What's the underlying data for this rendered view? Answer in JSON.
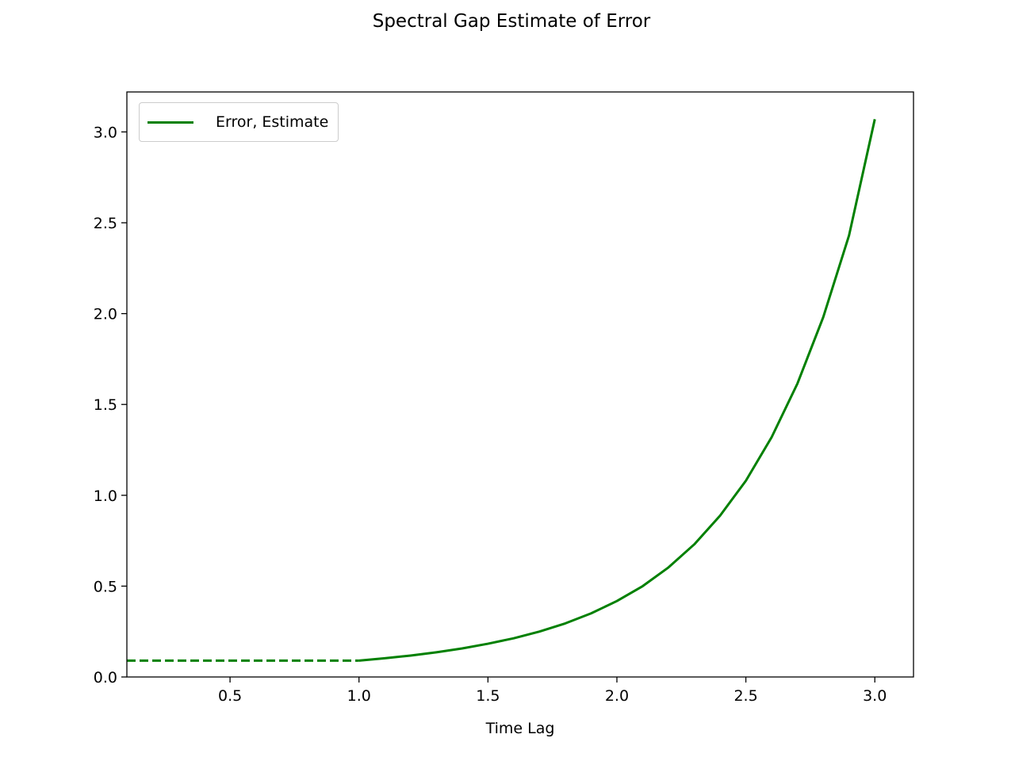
{
  "chart_data": {
    "type": "line",
    "title": "Spectral Gap Estimate of Error",
    "xlabel": "Time Lag",
    "ylabel": "",
    "xlim": [
      0.1,
      3.15
    ],
    "ylim": [
      0.0,
      3.22
    ],
    "xticks": [
      "0.5",
      "1.0",
      "1.5",
      "2.0",
      "2.5",
      "3.0"
    ],
    "yticks": [
      "0.0",
      "0.5",
      "1.0",
      "1.5",
      "2.0",
      "2.5",
      "3.0"
    ],
    "grid": false,
    "legend_position": "top-left",
    "series": [
      {
        "name": "Error, Estimate",
        "color": "#008000",
        "style": "solid",
        "x": [
          1.0,
          1.1,
          1.2,
          1.3,
          1.4,
          1.5,
          1.6,
          1.7,
          1.8,
          1.9,
          2.0,
          2.1,
          2.2,
          2.3,
          2.4,
          2.5,
          2.6,
          2.7,
          2.8,
          2.9,
          3.0
        ],
        "y": [
          0.09,
          0.103,
          0.118,
          0.136,
          0.157,
          0.183,
          0.213,
          0.25,
          0.295,
          0.35,
          0.418,
          0.5,
          0.603,
          0.73,
          0.888,
          1.08,
          1.32,
          1.615,
          1.98,
          2.43,
          3.07
        ]
      },
      {
        "name": "",
        "color": "#008000",
        "style": "dashed",
        "x": [
          0.1,
          1.0
        ],
        "y": [
          0.09,
          0.09
        ]
      }
    ]
  }
}
